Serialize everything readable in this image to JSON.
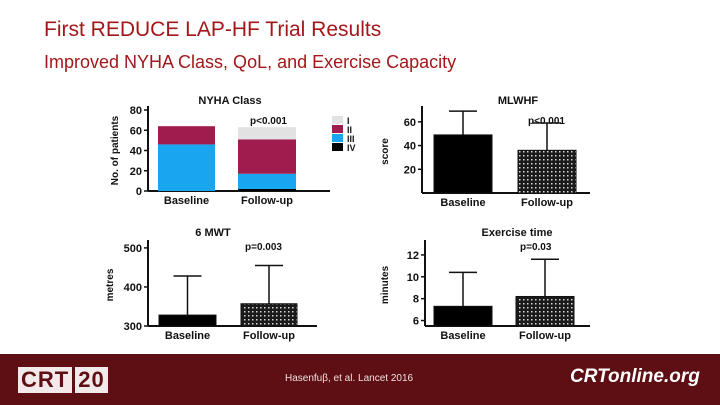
{
  "slide": {
    "title": "First REDUCE LAP-HF Trial Results",
    "subtitle": "Improved NYHA Class, QoL, and Exercise Capacity"
  },
  "footer": {
    "logo_left": [
      "CRT",
      "20"
    ],
    "citation": "Hasenfuβ, et al. Lancet 2016",
    "logo_right": "CRTonline.org",
    "background_color": "#5e0f13"
  },
  "chart_data": [
    {
      "id": "nyha",
      "type": "bar",
      "stacked": true,
      "title": "NYHA Class",
      "ylabel": "No. of patients",
      "categories": [
        "Baseline",
        "Follow-up"
      ],
      "ylim": [
        0,
        80
      ],
      "yticks": [
        0,
        20,
        40,
        60,
        80
      ],
      "pvalue": "p<0.001",
      "series": [
        {
          "name": "IV",
          "color": "#000000",
          "values": [
            0,
            2
          ]
        },
        {
          "name": "III",
          "color": "#19a6f0",
          "values": [
            46,
            15
          ]
        },
        {
          "name": "II",
          "color": "#a11c4e",
          "values": [
            18,
            34
          ]
        },
        {
          "name": "I",
          "color": "#e2e2e2",
          "values": [
            0,
            12
          ]
        }
      ],
      "legend": [
        "I",
        "II",
        "III",
        "IV"
      ]
    },
    {
      "id": "mlwhf",
      "type": "bar",
      "title": "MLWHF",
      "ylabel": "score",
      "categories": [
        "Baseline",
        "Follow-up"
      ],
      "values": [
        49,
        36
      ],
      "error": [
        20,
        23
      ],
      "ylim": [
        0,
        70
      ],
      "yticks": [
        20,
        40,
        60
      ],
      "pvalue": "p<0.001"
    },
    {
      "id": "smwt",
      "type": "bar",
      "title": "6 MWT",
      "ylabel": "metres",
      "categories": [
        "Baseline",
        "Follow-up"
      ],
      "values": [
        328,
        357
      ],
      "error": [
        100,
        98
      ],
      "ylim": [
        300,
        510
      ],
      "yticks": [
        300,
        400,
        500
      ],
      "pvalue": "p=0.003"
    },
    {
      "id": "extime",
      "type": "bar",
      "title": "Exercise time",
      "ylabel": "minutes",
      "categories": [
        "Baseline",
        "Follow-up"
      ],
      "values": [
        7.3,
        8.2
      ],
      "error": [
        3.1,
        3.4
      ],
      "ylim": [
        5.5,
        13
      ],
      "yticks": [
        6,
        8,
        10,
        12
      ],
      "pvalue": "p=0.03"
    }
  ]
}
